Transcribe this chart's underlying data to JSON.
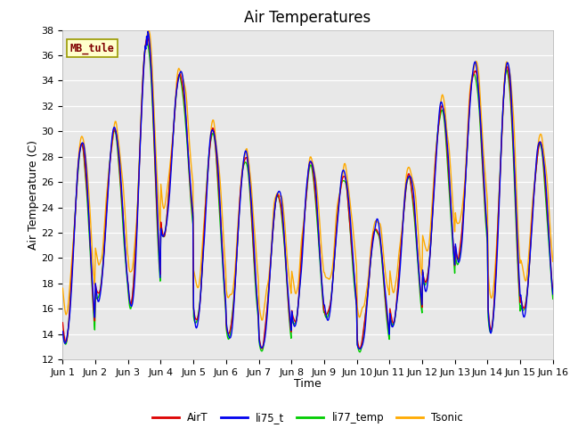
{
  "title": "Air Temperatures",
  "xlabel": "Time",
  "ylabel": "Air Temperature (C)",
  "ylim": [
    12,
    38
  ],
  "xlim": [
    0,
    15
  ],
  "xtick_labels": [
    "Jun 1",
    "Jun 2",
    "Jun 3",
    "Jun 4",
    "Jun 5",
    "Jun 6",
    "Jun 7",
    "Jun 8",
    "Jun 9",
    "Jun 10",
    "Jun 11",
    "Jun 12",
    "Jun 13",
    "Jun 14",
    "Jun 15",
    "Jun 16"
  ],
  "ytick_values": [
    12,
    14,
    16,
    18,
    20,
    22,
    24,
    26,
    28,
    30,
    32,
    34,
    36,
    38
  ],
  "series": {
    "AirT": {
      "color": "#dd0000",
      "linewidth": 1.0,
      "zorder": 4
    },
    "li75_t": {
      "color": "#0000ee",
      "linewidth": 1.0,
      "zorder": 5
    },
    "li77_temp": {
      "color": "#00cc00",
      "linewidth": 1.0,
      "zorder": 2
    },
    "Tsonic": {
      "color": "#ffaa00",
      "linewidth": 1.0,
      "zorder": 3
    }
  },
  "annotation_text": "MB_tule",
  "annotation_color": "#800000",
  "annotation_bg": "#ffffcc",
  "annotation_border": "#999900",
  "background_color": "#e8e8e8",
  "grid_color": "#ffffff",
  "title_fontsize": 12,
  "axis_fontsize": 9,
  "tick_fontsize": 8
}
